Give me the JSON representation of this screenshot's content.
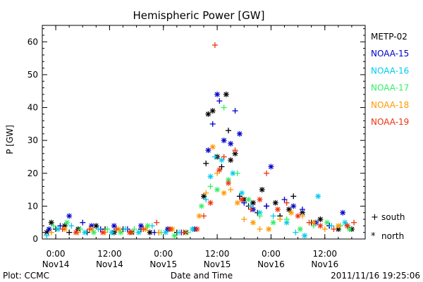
{
  "chart_data": {
    "type": "scatter",
    "title": "Hemispheric Power [GW]",
    "xlabel": "Date and Time",
    "ylabel": "P [GW]",
    "x_unit": "datetime",
    "xlim": [
      "2011-11-13T21:00",
      "2011-11-16T21:00"
    ],
    "ylim": [
      0,
      65
    ],
    "yticks": [
      0,
      10,
      20,
      30,
      40,
      50,
      60
    ],
    "xticks": [
      {
        "x": "2011-11-14T00:00",
        "label1": "0:00",
        "label2": "Nov14"
      },
      {
        "x": "2011-11-14T12:00",
        "label1": "12:00",
        "label2": "Nov14"
      },
      {
        "x": "2011-11-15T00:00",
        "label1": "0:00",
        "label2": "Nov15"
      },
      {
        "x": "2011-11-15T12:00",
        "label1": "12:00",
        "label2": "Nov15"
      },
      {
        "x": "2011-11-16T00:00",
        "label1": "0:00",
        "label2": "Nov16"
      },
      {
        "x": "2011-11-16T12:00",
        "label1": "12:00",
        "label2": "Nov16"
      }
    ],
    "marker_legend": [
      {
        "symbol": "+",
        "label": "south"
      },
      {
        "symbol": "*",
        "label": "north"
      }
    ],
    "series": [
      {
        "name": "METP-02",
        "color": "#000000",
        "points": [
          [
            "2011-11-13T22:00",
            2,
            "n"
          ],
          [
            "2011-11-13T23:00",
            5,
            "n"
          ],
          [
            "2011-11-14T00:00",
            3,
            "s"
          ],
          [
            "2011-11-14T02:00",
            4,
            "n"
          ],
          [
            "2011-11-14T03:00",
            2,
            "s"
          ],
          [
            "2011-11-14T05:00",
            3,
            "n"
          ],
          [
            "2011-11-14T07:00",
            2,
            "s"
          ],
          [
            "2011-11-14T09:00",
            4,
            "n"
          ],
          [
            "2011-11-14T11:00",
            3,
            "s"
          ],
          [
            "2011-11-14T13:00",
            2,
            "n"
          ],
          [
            "2011-11-14T15:00",
            3,
            "s"
          ],
          [
            "2011-11-14T17:00",
            2,
            "n"
          ],
          [
            "2011-11-14T19:00",
            3,
            "s"
          ],
          [
            "2011-11-14T21:00",
            2,
            "n"
          ],
          [
            "2011-11-14T23:00",
            2,
            "s"
          ],
          [
            "2011-11-15T01:00",
            3,
            "n"
          ],
          [
            "2011-11-15T03:00",
            2,
            "s"
          ],
          [
            "2011-11-15T05:00",
            2,
            "n"
          ],
          [
            "2011-11-15T07:00",
            3,
            "s"
          ],
          [
            "2011-11-15T09:00",
            13,
            "n"
          ],
          [
            "2011-11-15T09:30",
            23,
            "s"
          ],
          [
            "2011-11-15T10:00",
            38,
            "n"
          ],
          [
            "2011-11-15T11:00",
            39,
            "n"
          ],
          [
            "2011-11-15T12:00",
            25,
            "n"
          ],
          [
            "2011-11-15T13:00",
            22,
            "s"
          ],
          [
            "2011-11-15T14:00",
            44,
            "n"
          ],
          [
            "2011-11-15T14:30",
            33,
            "s"
          ],
          [
            "2011-11-15T15:00",
            24,
            "n"
          ],
          [
            "2011-11-15T16:00",
            26,
            "n"
          ],
          [
            "2011-11-15T17:00",
            13,
            "s"
          ],
          [
            "2011-11-15T18:00",
            12,
            "n"
          ],
          [
            "2011-11-15T19:00",
            10,
            "s"
          ],
          [
            "2011-11-15T20:00",
            11,
            "n"
          ],
          [
            "2011-11-15T21:00",
            8,
            "s"
          ],
          [
            "2011-11-15T22:00",
            15,
            "n"
          ],
          [
            "2011-11-15T23:00",
            10,
            "s"
          ],
          [
            "2011-11-16T01:00",
            11,
            "n"
          ],
          [
            "2011-11-16T02:00",
            7,
            "s"
          ],
          [
            "2011-11-16T04:00",
            9,
            "n"
          ],
          [
            "2011-11-16T05:00",
            13,
            "s"
          ],
          [
            "2011-11-16T07:00",
            8,
            "n"
          ],
          [
            "2011-11-16T09:00",
            5,
            "s"
          ],
          [
            "2011-11-16T11:00",
            6,
            "n"
          ],
          [
            "2011-11-16T13:00",
            4,
            "s"
          ],
          [
            "2011-11-16T15:00",
            3,
            "n"
          ],
          [
            "2011-11-16T17:00",
            4,
            "s"
          ],
          [
            "2011-11-16T18:00",
            3,
            "n"
          ]
        ]
      },
      {
        "name": "NOAA-15",
        "color": "#0000cc",
        "points": [
          [
            "2011-11-13T22:30",
            3,
            "n"
          ],
          [
            "2011-11-14T01:00",
            4,
            "s"
          ],
          [
            "2011-11-14T03:00",
            7,
            "n"
          ],
          [
            "2011-11-14T06:00",
            5,
            "s"
          ],
          [
            "2011-11-14T08:00",
            4,
            "n"
          ],
          [
            "2011-11-14T10:00",
            3,
            "s"
          ],
          [
            "2011-11-14T13:00",
            4,
            "n"
          ],
          [
            "2011-11-14T16:00",
            3,
            "s"
          ],
          [
            "2011-11-14T19:00",
            4,
            "n"
          ],
          [
            "2011-11-14T22:00",
            2,
            "s"
          ],
          [
            "2011-11-15T01:00",
            3,
            "n"
          ],
          [
            "2011-11-15T04:00",
            2,
            "s"
          ],
          [
            "2011-11-15T07:00",
            3,
            "n"
          ],
          [
            "2011-11-15T10:00",
            27,
            "n"
          ],
          [
            "2011-11-15T11:00",
            35,
            "s"
          ],
          [
            "2011-11-15T12:00",
            44,
            "n"
          ],
          [
            "2011-11-15T12:30",
            42,
            "s"
          ],
          [
            "2011-11-15T13:30",
            30,
            "n"
          ],
          [
            "2011-11-15T15:00",
            29,
            "n"
          ],
          [
            "2011-11-15T16:00",
            39,
            "s"
          ],
          [
            "2011-11-15T17:00",
            32,
            "n"
          ],
          [
            "2011-11-15T18:00",
            11,
            "s"
          ],
          [
            "2011-11-15T20:00",
            9,
            "n"
          ],
          [
            "2011-11-15T23:00",
            10,
            "s"
          ],
          [
            "2011-11-16T00:00",
            22,
            "n"
          ],
          [
            "2011-11-16T03:00",
            12,
            "s"
          ],
          [
            "2011-11-16T05:00",
            10,
            "n"
          ],
          [
            "2011-11-16T07:00",
            9,
            "s"
          ],
          [
            "2011-11-16T10:00",
            5,
            "n"
          ],
          [
            "2011-11-16T13:00",
            4,
            "s"
          ],
          [
            "2011-11-16T16:00",
            8,
            "n"
          ]
        ]
      },
      {
        "name": "NOAA-16",
        "color": "#00ccee",
        "points": [
          [
            "2011-11-13T22:00",
            1,
            "s"
          ],
          [
            "2011-11-14T00:30",
            3,
            "n"
          ],
          [
            "2011-11-14T03:30",
            4,
            "s"
          ],
          [
            "2011-11-14T06:30",
            2,
            "n"
          ],
          [
            "2011-11-14T09:30",
            3,
            "s"
          ],
          [
            "2011-11-14T12:30",
            2,
            "n"
          ],
          [
            "2011-11-14T15:30",
            3,
            "s"
          ],
          [
            "2011-11-14T18:30",
            2,
            "n"
          ],
          [
            "2011-11-14T21:30",
            4,
            "s"
          ],
          [
            "2011-11-15T00:30",
            2,
            "n"
          ],
          [
            "2011-11-15T03:30",
            2,
            "s"
          ],
          [
            "2011-11-15T06:30",
            3,
            "n"
          ],
          [
            "2011-11-15T09:30",
            12,
            "s"
          ],
          [
            "2011-11-15T10:30",
            19,
            "n"
          ],
          [
            "2011-11-15T11:30",
            25,
            "s"
          ],
          [
            "2011-11-15T13:00",
            24,
            "n"
          ],
          [
            "2011-11-15T15:30",
            20,
            "n"
          ],
          [
            "2011-11-15T17:30",
            14,
            "n"
          ],
          [
            "2011-11-15T19:30",
            10,
            "s"
          ],
          [
            "2011-11-15T21:30",
            8,
            "n"
          ],
          [
            "2011-11-16T00:30",
            7,
            "s"
          ],
          [
            "2011-11-16T03:30",
            5,
            "n"
          ],
          [
            "2011-11-16T05:30",
            2,
            "s"
          ],
          [
            "2011-11-16T07:30",
            1,
            "n"
          ],
          [
            "2011-11-16T10:30",
            13,
            "n"
          ],
          [
            "2011-11-16T13:30",
            4,
            "s"
          ],
          [
            "2011-11-16T16:30",
            5,
            "n"
          ]
        ]
      },
      {
        "name": "NOAA-17",
        "color": "#33ee66",
        "points": [
          [
            "2011-11-13T23:30",
            4,
            "s"
          ],
          [
            "2011-11-14T02:30",
            5,
            "n"
          ],
          [
            "2011-11-14T05:30",
            3,
            "s"
          ],
          [
            "2011-11-14T08:30",
            2,
            "n"
          ],
          [
            "2011-11-14T11:30",
            3,
            "s"
          ],
          [
            "2011-11-14T14:30",
            2,
            "n"
          ],
          [
            "2011-11-14T17:30",
            3,
            "s"
          ],
          [
            "2011-11-14T20:30",
            4,
            "n"
          ],
          [
            "2011-11-14T23:30",
            2,
            "s"
          ],
          [
            "2011-11-15T02:30",
            1,
            "n"
          ],
          [
            "2011-11-15T05:30",
            2,
            "s"
          ],
          [
            "2011-11-15T08:30",
            10,
            "n"
          ],
          [
            "2011-11-15T10:30",
            16,
            "s"
          ],
          [
            "2011-11-15T12:00",
            15,
            "n"
          ],
          [
            "2011-11-15T13:30",
            40,
            "s"
          ],
          [
            "2011-11-15T14:30",
            18,
            "n"
          ],
          [
            "2011-11-15T16:30",
            20,
            "s"
          ],
          [
            "2011-11-15T19:00",
            12,
            "n"
          ],
          [
            "2011-11-15T21:30",
            7,
            "s"
          ],
          [
            "2011-11-16T00:30",
            5,
            "n"
          ],
          [
            "2011-11-16T03:30",
            6,
            "s"
          ],
          [
            "2011-11-16T06:30",
            3,
            "n"
          ],
          [
            "2011-11-16T09:30",
            4,
            "s"
          ],
          [
            "2011-11-16T12:30",
            5,
            "n"
          ],
          [
            "2011-11-16T15:30",
            4,
            "s"
          ],
          [
            "2011-11-16T17:30",
            3,
            "n"
          ]
        ]
      },
      {
        "name": "NOAA-18",
        "color": "#ff9900",
        "points": [
          [
            "2011-11-13T23:00",
            2,
            "s"
          ],
          [
            "2011-11-14T02:00",
            3,
            "n"
          ],
          [
            "2011-11-14T05:00",
            2,
            "s"
          ],
          [
            "2011-11-14T08:00",
            3,
            "n"
          ],
          [
            "2011-11-14T11:00",
            2,
            "s"
          ],
          [
            "2011-11-14T14:00",
            3,
            "n"
          ],
          [
            "2011-11-14T17:00",
            2,
            "s"
          ],
          [
            "2011-11-14T20:00",
            3,
            "n"
          ],
          [
            "2011-11-14T23:00",
            2,
            "s"
          ],
          [
            "2011-11-15T02:00",
            3,
            "n"
          ],
          [
            "2011-11-15T05:00",
            2,
            "s"
          ],
          [
            "2011-11-15T08:00",
            7,
            "n"
          ],
          [
            "2011-11-15T09:30",
            14,
            "s"
          ],
          [
            "2011-11-15T11:00",
            28,
            "n"
          ],
          [
            "2011-11-15T12:00",
            20,
            "s"
          ],
          [
            "2011-11-15T13:30",
            14,
            "n"
          ],
          [
            "2011-11-15T15:00",
            15,
            "s"
          ],
          [
            "2011-11-15T16:30",
            11,
            "n"
          ],
          [
            "2011-11-15T18:00",
            6,
            "s"
          ],
          [
            "2011-11-15T20:00",
            5,
            "n"
          ],
          [
            "2011-11-15T21:30",
            3,
            "s"
          ],
          [
            "2011-11-15T23:30",
            3,
            "n"
          ],
          [
            "2011-11-16T02:00",
            6,
            "s"
          ],
          [
            "2011-11-16T04:30",
            8,
            "n"
          ],
          [
            "2011-11-16T07:00",
            7,
            "s"
          ],
          [
            "2011-11-16T09:30",
            5,
            "n"
          ],
          [
            "2011-11-16T12:00",
            3,
            "s"
          ],
          [
            "2011-11-16T15:00",
            4,
            "n"
          ]
        ]
      },
      {
        "name": "NOAA-19",
        "color": "#ee3311",
        "points": [
          [
            "2011-11-14T01:30",
            3,
            "s"
          ],
          [
            "2011-11-14T04:30",
            2,
            "n"
          ],
          [
            "2011-11-14T07:30",
            3,
            "s"
          ],
          [
            "2011-11-14T10:30",
            2,
            "n"
          ],
          [
            "2011-11-14T13:30",
            3,
            "s"
          ],
          [
            "2011-11-14T16:30",
            2,
            "n"
          ],
          [
            "2011-11-14T19:30",
            3,
            "s"
          ],
          [
            "2011-11-14T22:30",
            5,
            "s"
          ],
          [
            "2011-11-15T01:30",
            3,
            "n"
          ],
          [
            "2011-11-15T04:30",
            2,
            "s"
          ],
          [
            "2011-11-15T07:30",
            3,
            "n"
          ],
          [
            "2011-11-15T09:00",
            7,
            "s"
          ],
          [
            "2011-11-15T10:30",
            11,
            "n"
          ],
          [
            "2011-11-15T11:30",
            59,
            "s"
          ],
          [
            "2011-11-15T12:30",
            21,
            "n"
          ],
          [
            "2011-11-15T13:30",
            25,
            "s"
          ],
          [
            "2011-11-15T14:30",
            17,
            "n"
          ],
          [
            "2011-11-15T16:00",
            27,
            "s"
          ],
          [
            "2011-11-15T17:30",
            12,
            "n"
          ],
          [
            "2011-11-15T19:30",
            9,
            "s"
          ],
          [
            "2011-11-15T21:30",
            12,
            "n"
          ],
          [
            "2011-11-15T23:00",
            20,
            "s"
          ],
          [
            "2011-11-16T01:30",
            9,
            "n"
          ],
          [
            "2011-11-16T03:30",
            11,
            "s"
          ],
          [
            "2011-11-16T06:00",
            7,
            "n"
          ],
          [
            "2011-11-16T08:30",
            5,
            "s"
          ],
          [
            "2011-11-16T11:00",
            4,
            "n"
          ],
          [
            "2011-11-16T14:00",
            3,
            "s"
          ],
          [
            "2011-11-16T17:00",
            4,
            "n"
          ],
          [
            "2011-11-16T18:30",
            5,
            "s"
          ]
        ]
      }
    ]
  },
  "footer": {
    "plot_credit": "Plot: CCMC",
    "timestamp": "2011/11/16 19:25:06"
  }
}
